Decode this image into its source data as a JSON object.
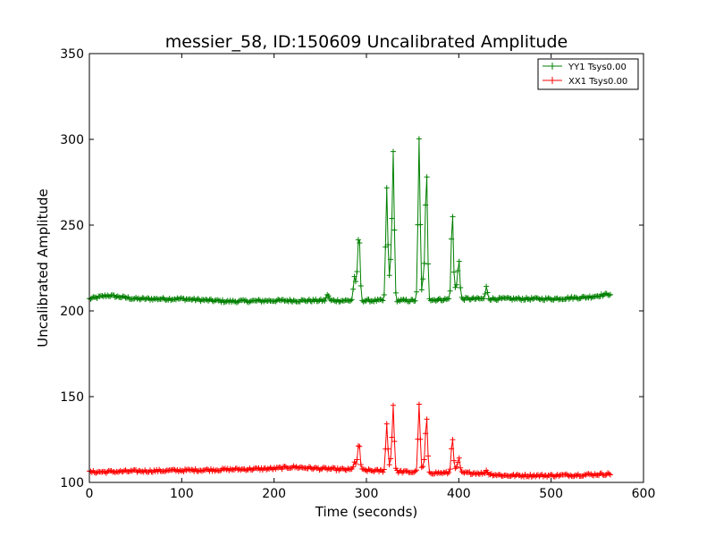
{
  "chart_data": {
    "type": "line",
    "title": "messier_58, ID:150609 Uncalibrated Amplitude",
    "xlabel": "Time (seconds)",
    "ylabel": "Uncalibrated Amplitude",
    "xlim": [
      0,
      600
    ],
    "ylim": [
      100,
      350
    ],
    "xticks": [
      0,
      100,
      200,
      300,
      400,
      500,
      600
    ],
    "yticks": [
      100,
      150,
      200,
      250,
      300,
      350
    ],
    "grid": false,
    "legend_position": "top-right",
    "marker": "+",
    "series": [
      {
        "name": "YY1 Tsys0.00",
        "color": "#008000",
        "baseline": [
          [
            0,
            207
          ],
          [
            20,
            209
          ],
          [
            50,
            207
          ],
          [
            100,
            207
          ],
          [
            150,
            205.5
          ],
          [
            200,
            206
          ],
          [
            250,
            206
          ],
          [
            300,
            206
          ],
          [
            350,
            206
          ],
          [
            400,
            207
          ],
          [
            450,
            207
          ],
          [
            500,
            207
          ],
          [
            540,
            208
          ],
          [
            565,
            210
          ]
        ],
        "peaks": [
          [
            258,
            210
          ],
          [
            287,
            220
          ],
          [
            290,
            216
          ],
          [
            292,
            244
          ],
          [
            322,
            272
          ],
          [
            326,
            226
          ],
          [
            329,
            293
          ],
          [
            357,
            300
          ],
          [
            362,
            221
          ],
          [
            365,
            283
          ],
          [
            393,
            258
          ],
          [
            397,
            214
          ],
          [
            400,
            230
          ],
          [
            430,
            214
          ]
        ]
      },
      {
        "name": "XX1 Tsys0.00",
        "color": "#ff0000",
        "baseline": [
          [
            0,
            106
          ],
          [
            50,
            106.5
          ],
          [
            100,
            107
          ],
          [
            150,
            107.5
          ],
          [
            200,
            108
          ],
          [
            220,
            109
          ],
          [
            250,
            108
          ],
          [
            300,
            107
          ],
          [
            350,
            106
          ],
          [
            380,
            105.5
          ],
          [
            420,
            105.5
          ],
          [
            450,
            104
          ],
          [
            500,
            104
          ],
          [
            540,
            104.5
          ],
          [
            565,
            105
          ]
        ],
        "peaks": [
          [
            258,
            108
          ],
          [
            287,
            112
          ],
          [
            290,
            110
          ],
          [
            292,
            123
          ],
          [
            322,
            134
          ],
          [
            326,
            112
          ],
          [
            329,
            145
          ],
          [
            357,
            146
          ],
          [
            362,
            110
          ],
          [
            365,
            138
          ],
          [
            393,
            127
          ],
          [
            397,
            108
          ],
          [
            400,
            114
          ],
          [
            430,
            107
          ]
        ]
      }
    ]
  }
}
